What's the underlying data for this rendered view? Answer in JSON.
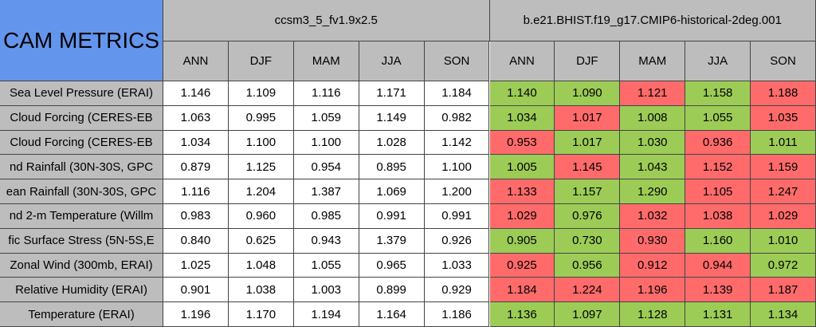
{
  "title": "CAM METRICS",
  "groups": [
    {
      "name": "ccsm3_5_fv1.9x2.5",
      "columns": [
        "ANN",
        "DJF",
        "MAM",
        "JJA",
        "SON"
      ]
    },
    {
      "name": "b.e21.BHIST.f19_g17.CMIP6-historical-2deg.001",
      "columns": [
        "ANN",
        "DJF",
        "MAM",
        "JJA",
        "SON"
      ]
    }
  ],
  "rows": [
    {
      "label": "Sea Level Pressure (ERAI)",
      "values": [
        "1.146",
        "1.109",
        "1.116",
        "1.171",
        "1.184",
        "1.140",
        "1.090",
        "1.121",
        "1.158",
        "1.188"
      ],
      "colors": [
        "#9ccc56",
        "#9ccc56",
        "#ff6b6b",
        "#9ccc56",
        "#ff6b6b"
      ]
    },
    {
      "label": "Cloud Forcing (CERES-EB",
      "values": [
        "1.063",
        "0.995",
        "1.059",
        "1.149",
        "0.982",
        "1.034",
        "1.017",
        "1.008",
        "1.055",
        "1.035"
      ],
      "colors": [
        "#9ccc56",
        "#ff6b6b",
        "#9ccc56",
        "#9ccc56",
        "#ff6b6b"
      ]
    },
    {
      "label": "Cloud Forcing (CERES-EB",
      "values": [
        "1.034",
        "1.100",
        "1.100",
        "1.028",
        "1.142",
        "0.953",
        "1.017",
        "1.030",
        "0.936",
        "1.011"
      ],
      "colors": [
        "#ff6b6b",
        "#9ccc56",
        "#9ccc56",
        "#ff6b6b",
        "#9ccc56"
      ]
    },
    {
      "label": "nd Rainfall (30N-30S, GPC",
      "values": [
        "0.879",
        "1.125",
        "0.954",
        "0.895",
        "1.100",
        "1.005",
        "1.145",
        "1.043",
        "1.152",
        "1.159"
      ],
      "colors": [
        "#9ccc56",
        "#ff6b6b",
        "#9ccc56",
        "#ff6b6b",
        "#ff6b6b"
      ]
    },
    {
      "label": "ean Rainfall (30N-30S, GPC",
      "values": [
        "1.116",
        "1.204",
        "1.387",
        "1.069",
        "1.200",
        "1.133",
        "1.157",
        "1.290",
        "1.105",
        "1.247"
      ],
      "colors": [
        "#ff6b6b",
        "#9ccc56",
        "#9ccc56",
        "#ff6b6b",
        "#ff6b6b"
      ]
    },
    {
      "label": "nd 2-m Temperature (Willm",
      "values": [
        "0.983",
        "0.960",
        "0.985",
        "0.991",
        "0.991",
        "1.029",
        "0.976",
        "1.032",
        "1.038",
        "1.029"
      ],
      "colors": [
        "#ff6b6b",
        "#9ccc56",
        "#ff6b6b",
        "#ff6b6b",
        "#ff6b6b"
      ]
    },
    {
      "label": "fic Surface Stress (5N-5S,E",
      "values": [
        "0.840",
        "0.625",
        "0.943",
        "1.379",
        "0.926",
        "0.905",
        "0.730",
        "0.930",
        "1.160",
        "1.010"
      ],
      "colors": [
        "#9ccc56",
        "#9ccc56",
        "#ff6b6b",
        "#9ccc56",
        "#9ccc56"
      ]
    },
    {
      "label": "Zonal Wind (300mb, ERAI)",
      "values": [
        "1.025",
        "1.048",
        "1.055",
        "0.965",
        "1.033",
        "0.925",
        "0.956",
        "0.912",
        "0.944",
        "0.972"
      ],
      "colors": [
        "#ff6b6b",
        "#9ccc56",
        "#ff6b6b",
        "#ff6b6b",
        "#9ccc56"
      ]
    },
    {
      "label": "Relative Humidity (ERAI)",
      "values": [
        "0.901",
        "1.038",
        "1.003",
        "0.899",
        "0.929",
        "1.184",
        "1.224",
        "1.196",
        "1.139",
        "1.187"
      ],
      "colors": [
        "#ff6b6b",
        "#ff6b6b",
        "#ff6b6b",
        "#ff6b6b",
        "#ff6b6b"
      ]
    },
    {
      "label": "Temperature (ERAI)",
      "values": [
        "1.196",
        "1.170",
        "1.194",
        "1.164",
        "1.186",
        "1.136",
        "1.097",
        "1.128",
        "1.131",
        "1.134"
      ],
      "colors": [
        "#9ccc56",
        "#9ccc56",
        "#9ccc56",
        "#9ccc56",
        "#9ccc56"
      ]
    }
  ]
}
